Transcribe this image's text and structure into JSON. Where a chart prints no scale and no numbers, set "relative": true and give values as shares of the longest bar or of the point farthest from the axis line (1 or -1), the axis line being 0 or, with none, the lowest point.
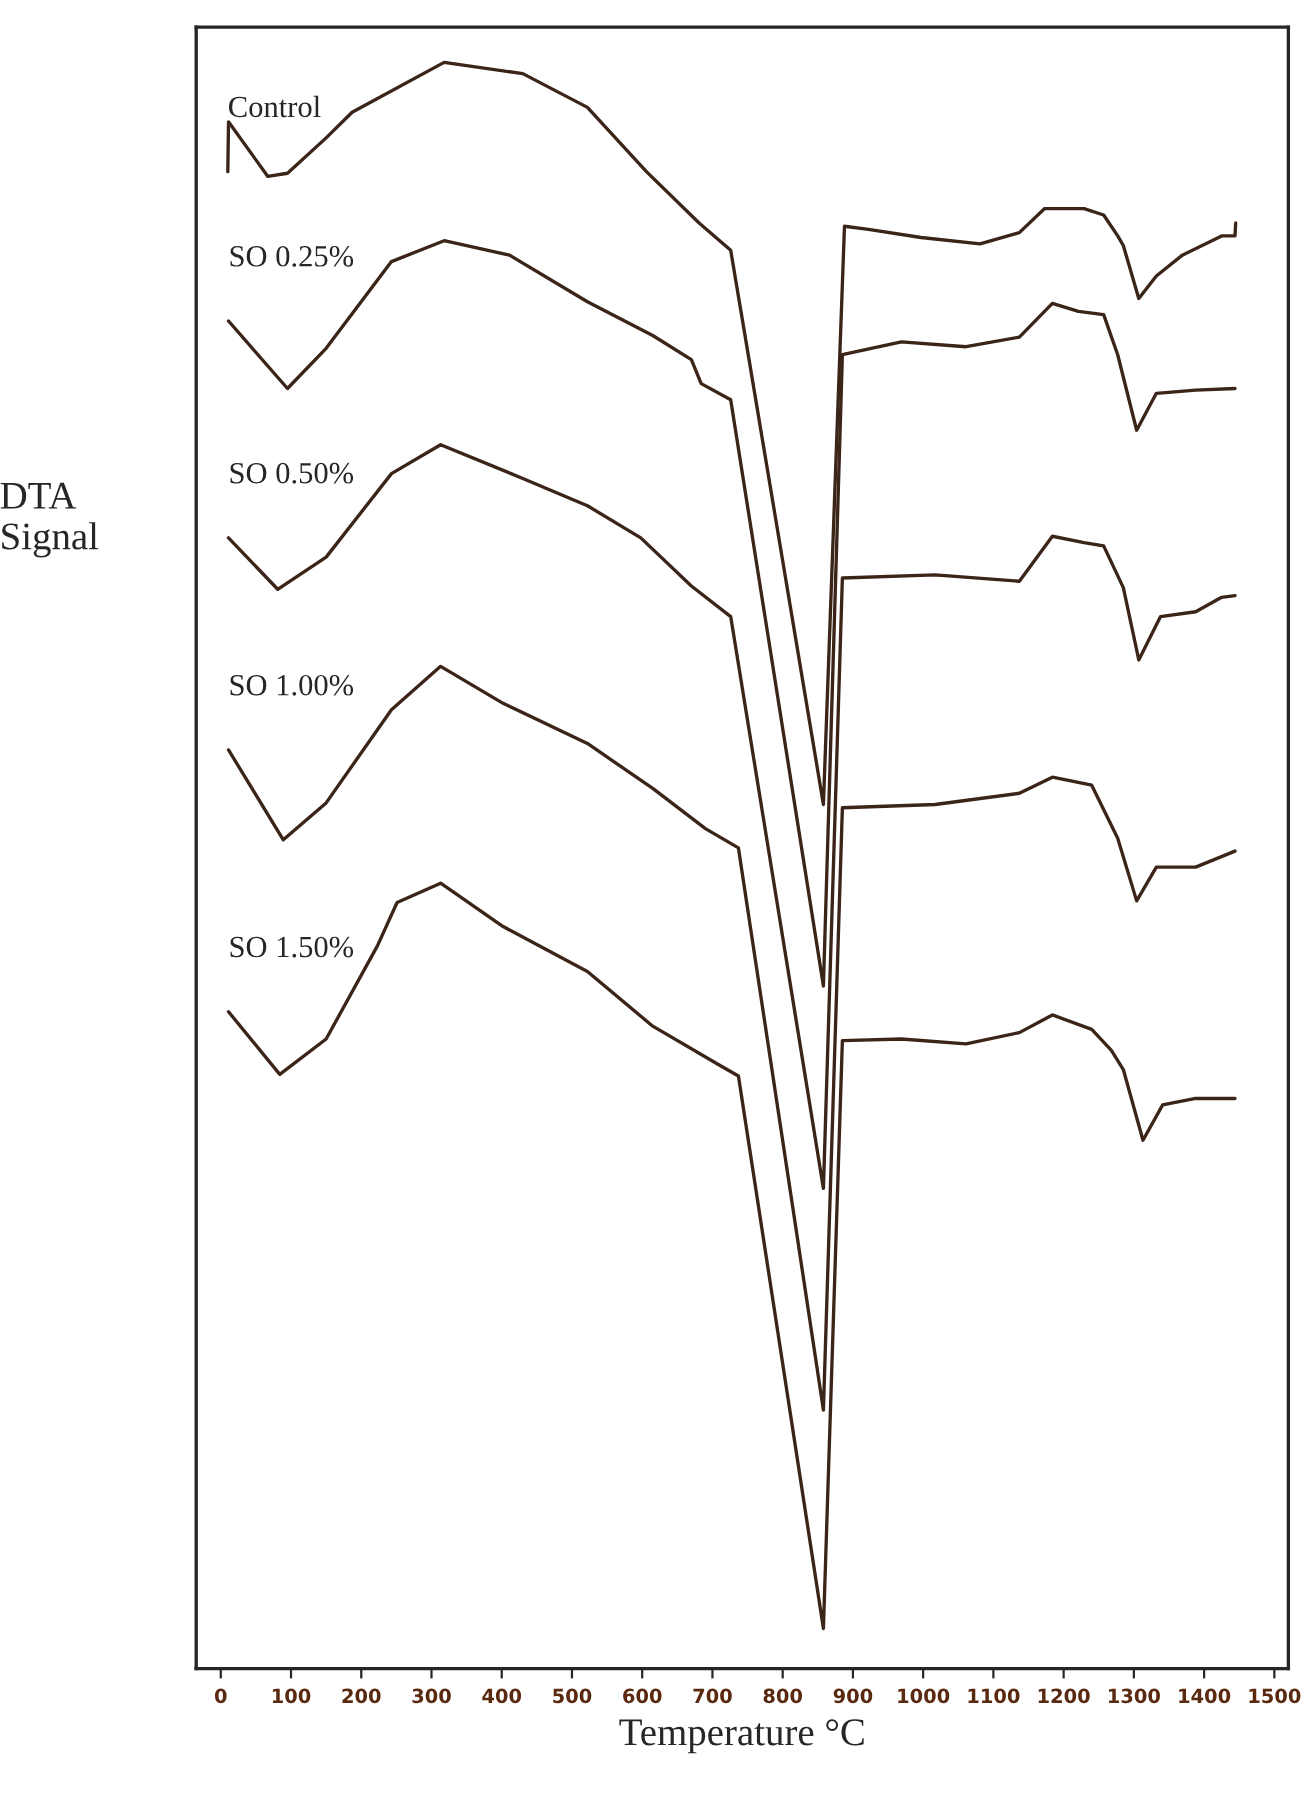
{
  "chart_data": {
    "type": "line",
    "relative": true,
    "xlabel": "Temperature °C",
    "ylabel": "DTA\nSignal",
    "xlim": [
      -35,
      1520
    ],
    "xticks": [
      0,
      100,
      200,
      300,
      400,
      500,
      600,
      700,
      800,
      900,
      1000,
      1100,
      1200,
      1300,
      1400,
      1500
    ],
    "grid": false,
    "legend": false,
    "marker": "none",
    "line_style": "solid",
    "series": [
      {
        "name": "Control",
        "color": "#3b2418",
        "x": [
          10,
          11,
          67,
          95,
          150,
          187,
          318,
          430,
          522,
          606,
          681,
          726,
          746,
          858,
          888,
          922,
          997,
          1081,
          1137,
          1173,
          1229,
          1257,
          1277,
          1285,
          1307,
          1332,
          1369,
          1425,
          1444,
          1445
        ],
        "values": [
          0.932,
          0.963,
          0.929,
          0.931,
          0.953,
          0.969,
          1.0,
          0.993,
          0.972,
          0.932,
          0.9,
          0.883,
          0.831,
          0.538,
          0.898,
          0.896,
          0.891,
          0.887,
          0.894,
          0.909,
          0.909,
          0.905,
          0.892,
          0.886,
          0.853,
          0.867,
          0.88,
          0.892,
          0.892,
          0.9
        ]
      },
      {
        "name": "SO 0.25%",
        "color": "#3b2418",
        "x": [
          11,
          95,
          150,
          243,
          318,
          411,
          522,
          615,
          670,
          684,
          726,
          858,
          885,
          969,
          1061,
          1137,
          1184,
          1221,
          1257,
          1277,
          1304,
          1332,
          1388,
          1444
        ],
        "values": [
          0.839,
          0.797,
          0.822,
          0.876,
          0.889,
          0.88,
          0.851,
          0.83,
          0.815,
          0.8,
          0.79,
          0.425,
          0.818,
          0.826,
          0.823,
          0.829,
          0.85,
          0.845,
          0.843,
          0.818,
          0.771,
          0.794,
          0.796,
          0.797
        ]
      },
      {
        "name": "SO 0.50%",
        "color": "#3b2418",
        "x": [
          11,
          81,
          150,
          243,
          313,
          430,
          522,
          598,
          670,
          726,
          858,
          885,
          1017,
          1137,
          1184,
          1229,
          1257,
          1285,
          1307,
          1338,
          1388,
          1425,
          1444
        ],
        "values": [
          0.704,
          0.672,
          0.692,
          0.744,
          0.762,
          0.741,
          0.724,
          0.704,
          0.674,
          0.655,
          0.299,
          0.679,
          0.681,
          0.677,
          0.705,
          0.701,
          0.699,
          0.673,
          0.628,
          0.655,
          0.658,
          0.667,
          0.668
        ]
      },
      {
        "name": "SO 1.00%",
        "color": "#3b2418",
        "x": [
          11,
          89,
          150,
          243,
          313,
          402,
          522,
          615,
          690,
          737,
          858,
          885,
          1017,
          1137,
          1184,
          1240,
          1277,
          1304,
          1332,
          1388,
          1444
        ],
        "values": [
          0.572,
          0.516,
          0.539,
          0.597,
          0.624,
          0.601,
          0.576,
          0.548,
          0.523,
          0.511,
          0.161,
          0.536,
          0.538,
          0.545,
          0.555,
          0.55,
          0.517,
          0.478,
          0.499,
          0.499,
          0.509
        ]
      },
      {
        "name": "SO 1.50%",
        "color": "#3b2418",
        "x": [
          11,
          84,
          150,
          223,
          251,
          313,
          402,
          522,
          615,
          709,
          737,
          858,
          885,
          969,
          1061,
          1137,
          1184,
          1240,
          1268,
          1285,
          1313,
          1341,
          1388,
          1444
        ],
        "values": [
          0.409,
          0.37,
          0.392,
          0.45,
          0.477,
          0.489,
          0.462,
          0.434,
          0.4,
          0.376,
          0.369,
          0.025,
          0.391,
          0.392,
          0.389,
          0.396,
          0.407,
          0.398,
          0.385,
          0.373,
          0.329,
          0.351,
          0.355,
          0.355
        ]
      }
    ]
  }
}
